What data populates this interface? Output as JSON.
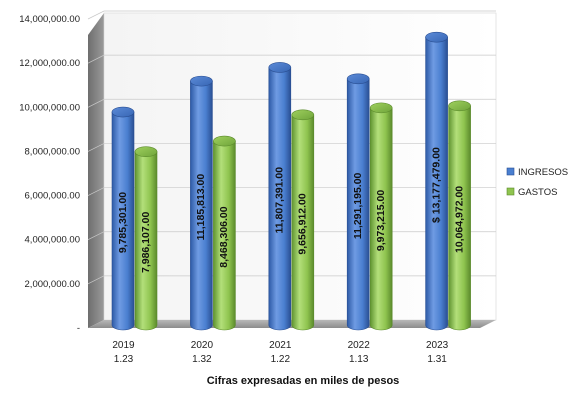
{
  "chart_data": {
    "type": "bar",
    "categories": [
      "2019",
      "2020",
      "2021",
      "2022",
      "2023"
    ],
    "category_sublabels": [
      "1.23",
      "1.32",
      "1.22",
      "1.13",
      "1.31"
    ],
    "series": [
      {
        "name": "INGRESOS",
        "color": "#4a7fd0",
        "values": [
          9785301,
          11185813,
          11807391,
          11291195,
          13177479
        ],
        "labels": [
          "9,785,301.00",
          "11,185,813.00",
          "11,807,391.00",
          "11,291,195.00",
          "$ 13,177,479.00"
        ]
      },
      {
        "name": "GASTOS",
        "color": "#8fc44f",
        "values": [
          7986107,
          8468306,
          9656912,
          9973215,
          10064972
        ],
        "labels": [
          "7,986,107.00",
          "8,468,306.00",
          "9,656,912.00",
          "9,973,215.00",
          "10,064,972.00"
        ]
      }
    ],
    "ylim": [
      0,
      14000000
    ],
    "yticks": [
      0,
      2000000,
      4000000,
      6000000,
      8000000,
      10000000,
      12000000,
      14000000
    ],
    "ytick_labels": [
      "-",
      "2,000,000.00",
      "4,000,000.00",
      "6,000,000.00",
      "8,000,000.00",
      "10,000,000.00",
      "12,000,000.00",
      "14,000,000.00"
    ],
    "legend_position": "right",
    "grid": true,
    "style": "3d-cylinder",
    "footer": "Cifras expresadas en miles de pesos"
  }
}
